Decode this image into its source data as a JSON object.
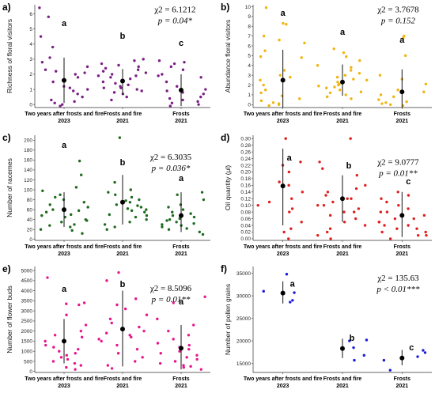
{
  "chart_data": [
    {
      "panel": "a)",
      "type": "scatter",
      "color": "#7b1f86",
      "ylabel": "Richness of floral visitors",
      "ylim": [
        -0.2,
        6.6
      ],
      "yticks": [
        "0",
        "1",
        "2",
        "3",
        "4",
        "5",
        "6"
      ],
      "categories": [
        {
          "name": "Two years after frosts and fire",
          "year": "2023",
          "letter": "a",
          "mean": 1.6,
          "sd_low": 0.1,
          "sd_high": 3.1,
          "points": [
            6.4,
            5.8,
            4.5,
            3.8,
            3.1,
            2.8,
            2.5,
            2.3,
            2.2,
            2.1,
            2.0,
            1.8,
            1.6,
            1.5,
            1.2,
            1.1,
            1.0,
            0.9,
            0.7,
            0.5,
            0.3,
            0.2,
            0.1,
            0.0,
            -0.1
          ]
        },
        {
          "name": "Frosts and fire",
          "year": "2021",
          "letter": "b",
          "mean": 1.55,
          "sd_low": 0.65,
          "sd_high": 2.35,
          "points": [
            3.0,
            2.9,
            2.7,
            2.6,
            2.5,
            2.4,
            2.3,
            2.2,
            2.1,
            2.0,
            1.9,
            1.9,
            1.8,
            1.7,
            1.6,
            1.5,
            1.4,
            1.3,
            1.2,
            1.1,
            1.1,
            1.0,
            0.9,
            0.8,
            0.7,
            0.5,
            0.3
          ]
        },
        {
          "name": "Frosts",
          "year": "2021",
          "letter": "c",
          "mean": 0.95,
          "sd_low": -0.1,
          "sd_high": 2.0,
          "points": [
            2.9,
            2.8,
            2.7,
            2.5,
            2.3,
            2.0,
            1.9,
            1.8,
            1.5,
            1.2,
            1.0,
            0.9,
            0.8,
            0.7,
            0.5,
            0.4,
            0.3,
            0.2,
            0.1,
            0.0,
            -0.1
          ]
        }
      ],
      "stat_chi": "χ2 = 6.1212",
      "stat_p": "p = 0.04*"
    },
    {
      "panel": "b)",
      "type": "scatter",
      "color": "#f0b40f",
      "ylabel": "Abundance floral visitors",
      "ylim": [
        -0.3,
        10.2
      ],
      "yticks": [
        "0",
        "1",
        "2",
        "3",
        "4",
        "5",
        "6",
        "7",
        "8",
        "9",
        "10"
      ],
      "categories": [
        {
          "name": "Two years after frosts and fire",
          "year": "2023",
          "letter": "a",
          "mean": 2.5,
          "sd_low": -0.3,
          "sd_high": 5.6,
          "points": [
            9.9,
            8.3,
            8.2,
            7.0,
            6.6,
            6.3,
            5.5,
            4.9,
            4.8,
            3.5,
            3.0,
            2.8,
            2.5,
            2.0,
            1.5,
            1.2,
            0.9,
            0.6,
            0.4,
            0.2,
            0.1,
            0.0,
            -0.1
          ]
        },
        {
          "name": "Frosts and fire",
          "year": "2021",
          "letter": "a",
          "mean": 2.3,
          "sd_low": 0.9,
          "sd_high": 4.1,
          "points": [
            5.7,
            5.3,
            4.9,
            4.5,
            4.0,
            3.8,
            3.5,
            3.2,
            3.0,
            2.8,
            2.6,
            2.5,
            2.3,
            2.1,
            2.0,
            1.9,
            1.8,
            1.7,
            1.5,
            1.3,
            1.2,
            1.0,
            0.8,
            0.6
          ]
        },
        {
          "name": "Frosts",
          "year": "2021",
          "letter": "a",
          "mean": 1.3,
          "sd_low": -0.3,
          "sd_high": 3.6,
          "points": [
            7.0,
            6.8,
            5.0,
            3.0,
            2.6,
            2.1,
            1.5,
            1.3,
            1.0,
            0.8,
            0.5,
            0.3,
            0.2,
            0.1,
            0.0,
            -0.1
          ]
        }
      ],
      "stat_chi": "χ2 = 3.7678",
      "stat_p": "p = 0.152"
    },
    {
      "panel": "c)",
      "type": "scatter",
      "color": "#1f6b1f",
      "ylabel": "Number of racemes",
      "ylim": [
        -2,
        210
      ],
      "yticks": [
        "0",
        "20",
        "40",
        "60",
        "80",
        "100",
        "120",
        "140",
        "160",
        "180",
        "200"
      ],
      "categories": [
        {
          "name": "Two years after frosts and fire",
          "year": "2023",
          "letter": "a",
          "mean": 60,
          "sd_low": 25,
          "sd_high": 95,
          "points": [
            158,
            130,
            105,
            98,
            90,
            85,
            80,
            75,
            70,
            65,
            60,
            58,
            55,
            50,
            48,
            45,
            40,
            38,
            35,
            30,
            28,
            25,
            20,
            18,
            12
          ]
        },
        {
          "name": "Frosts and fire",
          "year": "2021",
          "letter": "b",
          "mean": 75,
          "sd_low": 30,
          "sd_high": 130,
          "points": [
            205,
            115,
            100,
            95,
            90,
            85,
            80,
            78,
            75,
            70,
            68,
            65,
            62,
            60,
            58,
            55,
            50,
            48,
            45,
            40,
            35,
            30,
            25,
            20
          ]
        },
        {
          "name": "Frosts",
          "year": "2021",
          "letter": "a",
          "mean": 48,
          "sd_low": 15,
          "sd_high": 95,
          "points": [
            95,
            90,
            80,
            70,
            65,
            60,
            55,
            52,
            50,
            48,
            45,
            42,
            40,
            38,
            35,
            32,
            30,
            28,
            25,
            22,
            20,
            15,
            10
          ]
        }
      ],
      "stat_chi": "χ2 = 6.3035",
      "stat_p": "p = 0.036*"
    },
    {
      "panel": "d)",
      "type": "scatter",
      "color": "#e0201f",
      "ylabel": "Oil quantity (μl)",
      "ylim": [
        -0.005,
        0.31
      ],
      "yticks": [
        "0.00",
        "0.02",
        "0.04",
        "0.06",
        "0.08",
        "0.10",
        "0.12",
        "0.14",
        "0.16",
        "0.18",
        "0.20",
        "0.22",
        "0.24",
        "0.26",
        "0.28",
        "0.30"
      ],
      "categories": [
        {
          "name": "Two years after frosts and fire",
          "year": "2023",
          "letter": "a",
          "mean": 0.158,
          "sd_low": 0.04,
          "sd_high": 0.27,
          "points": [
            0.3,
            0.23,
            0.22,
            0.2,
            0.17,
            0.16,
            0.14,
            0.12,
            0.11,
            0.1,
            0.09,
            0.08,
            0.05,
            0.03,
            0.02,
            0.0
          ]
        },
        {
          "name": "Frosts and fire",
          "year": "2021",
          "letter": "b",
          "mean": 0.12,
          "sd_low": 0.05,
          "sd_high": 0.19,
          "points": [
            0.3,
            0.23,
            0.21,
            0.19,
            0.16,
            0.15,
            0.14,
            0.13,
            0.12,
            0.12,
            0.11,
            0.1,
            0.1,
            0.09,
            0.08,
            0.08,
            0.07,
            0.06,
            0.05,
            0.04,
            0.03,
            0.02,
            0.01,
            0.0
          ]
        },
        {
          "name": "Frosts",
          "year": "2021",
          "letter": "c",
          "mean": 0.07,
          "sd_low": 0.005,
          "sd_high": 0.14,
          "points": [
            0.14,
            0.13,
            0.12,
            0.11,
            0.1,
            0.09,
            0.08,
            0.08,
            0.07,
            0.06,
            0.06,
            0.05,
            0.05,
            0.04,
            0.04,
            0.03,
            0.03,
            0.02,
            0.02,
            0.01,
            0.01,
            0.0
          ]
        }
      ],
      "stat_chi": "χ2 = 9.0777",
      "stat_p": "p = 0.01**"
    },
    {
      "panel": "e)",
      "type": "scatter",
      "color": "#e8168c",
      "ylabel": "Number of flower buds",
      "ylim": [
        -50,
        5200
      ],
      "yticks": [
        "0",
        "500",
        "1000",
        "1500",
        "2000",
        "2500",
        "3000",
        "3500",
        "4000",
        "4500",
        "5000"
      ],
      "categories": [
        {
          "name": "Two years after frosts and fire",
          "year": "2023",
          "letter": "a",
          "mean": 1500,
          "sd_low": 400,
          "sd_high": 2600,
          "points": [
            4650,
            3400,
            3350,
            3300,
            2800,
            2300,
            2000,
            1800,
            1700,
            1500,
            1300,
            1200,
            1100,
            1000,
            900,
            800,
            700,
            600,
            500,
            400,
            300,
            200,
            100
          ]
        },
        {
          "name": "Frosts and fire",
          "year": "2021",
          "letter": "b",
          "mean": 2100,
          "sd_low": 250,
          "sd_high": 4000,
          "points": [
            4900,
            4500,
            3600,
            3300,
            3100,
            2800,
            2600,
            2400,
            2200,
            2000,
            1900,
            1800,
            1700,
            1600,
            1500,
            1300,
            1100,
            900,
            700,
            500,
            300,
            150
          ]
        },
        {
          "name": "Frosts",
          "year": "2021",
          "letter": "a",
          "mean": 1150,
          "sd_low": 100,
          "sd_high": 2300,
          "points": [
            3700,
            3400,
            2600,
            2300,
            2000,
            1800,
            1600,
            1400,
            1300,
            1200,
            1100,
            1000,
            900,
            800,
            700,
            600,
            500,
            400,
            300,
            250,
            200,
            100
          ]
        }
      ],
      "stat_chi": "χ2 = 8.5096",
      "stat_p": "p = 0.01**"
    },
    {
      "panel": "f)",
      "type": "scatter",
      "color": "#1a1adb",
      "ylabel": "Number of pollen grains",
      "ylim": [
        13000,
        36500
      ],
      "yticks": [
        "15000",
        "20000",
        "25000",
        "30000",
        "35000"
      ],
      "categories": [
        {
          "name": "Two years after frosts and fire",
          "year": "2023",
          "letter": "a",
          "mean": 30600,
          "sd_low": 28300,
          "sd_high": 33200,
          "points": [
            34800,
            31000,
            30700,
            29000,
            28600
          ]
        },
        {
          "name": "Frosts and fire",
          "year": "2021",
          "letter": "b",
          "mean": 18300,
          "sd_low": 16200,
          "sd_high": 20500,
          "points": [
            20200,
            20000,
            18500,
            16800,
            15700
          ]
        },
        {
          "name": "Frosts",
          "year": "2021",
          "letter": "c",
          "mean": 16200,
          "sd_low": 14600,
          "sd_high": 18000,
          "points": [
            17900,
            17400,
            16500,
            15700,
            13500
          ]
        }
      ],
      "stat_chi": "χ2 = 135.63",
      "stat_p": "p < 0.01***"
    }
  ]
}
